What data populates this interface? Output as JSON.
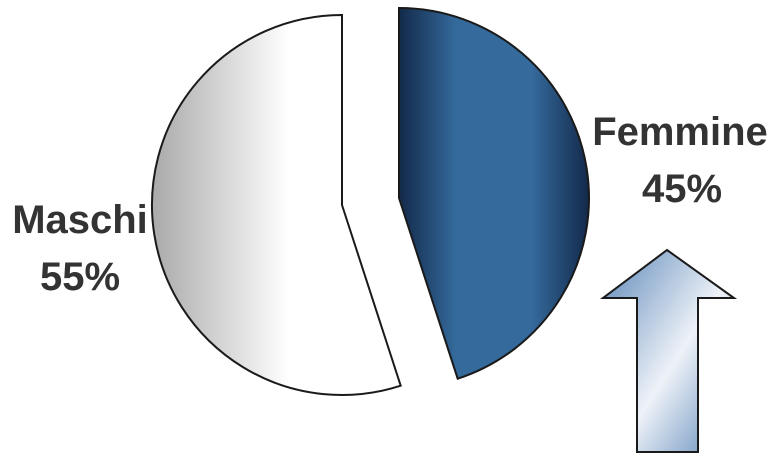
{
  "chart_data": {
    "type": "pie",
    "title": "",
    "categories": [
      "Maschi",
      "Femmine"
    ],
    "values": [
      55,
      45
    ],
    "value_labels": [
      "55%",
      "45%"
    ],
    "slice_styles": [
      "light-gray-gradient",
      "dark-blue-gradient"
    ],
    "colors": {
      "maschi_light": "#ffffff",
      "maschi_dark": "#a9a9a9",
      "femmine_light": "#346a9c",
      "femmine_dark": "#13294a",
      "outline": "#1a1a1a",
      "label_text": "#333333",
      "arrow_light": "#eef2f8",
      "arrow_mid": "#5a86b8"
    },
    "legend": "none",
    "annotation": {
      "shape": "up-arrow-icon",
      "near": "Femmine"
    }
  }
}
